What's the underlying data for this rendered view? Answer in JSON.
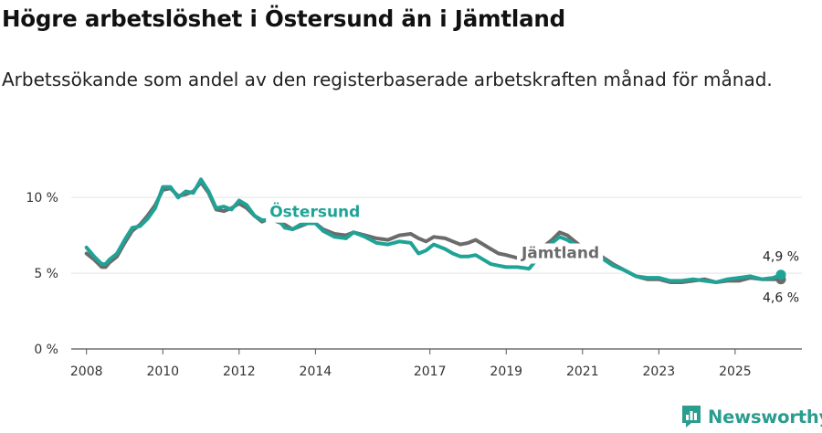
{
  "title": "Högre arbetslöshet i Östersund än i Jämtland",
  "subtitle": "Arbetssökande som andel av den registerbaserade arbetskraften månad för månad.",
  "brand": {
    "name": "Newsworthy",
    "icon": "newsworthy-logo-icon"
  },
  "colors": {
    "ostersund": "#1fa396",
    "jamtland": "#6b6b6b",
    "grid": "#e3e3e3",
    "axis": "#555555",
    "brand": "#2a9d8f"
  },
  "chart_data": {
    "type": "line",
    "title": "Högre arbetslöshet i Östersund än i Jämtland",
    "subtitle": "Arbetssökande som andel av den registerbaserade arbetskraften månad för månad.",
    "xlabel": "",
    "ylabel": "",
    "xlim": [
      2007.6,
      2026.75
    ],
    "ylim": [
      0,
      12
    ],
    "x_ticks": [
      2008,
      2010,
      2012,
      2014,
      2017,
      2019,
      2021,
      2023,
      2025
    ],
    "x_tick_labels": [
      "2008",
      "2010",
      "2012",
      "2014",
      "2017",
      "2019",
      "2021",
      "2023",
      "2025"
    ],
    "y_ticks": [
      0,
      5,
      10
    ],
    "y_tick_labels": [
      "0 %",
      "5 %",
      "10 %"
    ],
    "grid": true,
    "series": [
      {
        "name": "Jämtland",
        "label": "Jämtland",
        "end_label": "4,6 %",
        "color": "#6b6b6b",
        "x": [
          2008.0,
          2008.2,
          2008.4,
          2008.5,
          2008.6,
          2008.8,
          2009.0,
          2009.2,
          2009.4,
          2009.6,
          2009.8,
          2010.0,
          2010.2,
          2010.4,
          2010.6,
          2010.8,
          2011.0,
          2011.2,
          2011.4,
          2011.6,
          2011.8,
          2012.0,
          2012.2,
          2012.4,
          2012.6,
          2012.8,
          2013.0,
          2013.2,
          2013.4,
          2013.6,
          2013.8,
          2014.0,
          2014.2,
          2014.5,
          2014.8,
          2015.0,
          2015.3,
          2015.6,
          2015.9,
          2016.2,
          2016.5,
          2016.7,
          2016.9,
          2017.1,
          2017.4,
          2017.6,
          2017.8,
          2018.0,
          2018.2,
          2018.4,
          2018.6,
          2018.8,
          2019.0,
          2019.3,
          2019.6,
          2019.9,
          2020.2,
          2020.4,
          2020.6,
          2020.8,
          2021.0,
          2021.2,
          2021.5,
          2021.8,
          2022.1,
          2022.4,
          2022.7,
          2023.0,
          2023.3,
          2023.6,
          2023.9,
          2024.2,
          2024.5,
          2024.8,
          2025.1,
          2025.4,
          2025.7,
          2026.0,
          2026.2
        ],
        "values": [
          6.3,
          5.9,
          5.4,
          5.4,
          5.7,
          6.1,
          7.0,
          7.8,
          8.2,
          8.8,
          9.5,
          10.5,
          10.6,
          10.1,
          10.2,
          10.4,
          11.0,
          10.3,
          9.2,
          9.1,
          9.3,
          9.6,
          9.3,
          8.8,
          8.4,
          8.6,
          8.4,
          8.2,
          7.9,
          8.1,
          8.3,
          8.3,
          7.9,
          7.6,
          7.5,
          7.7,
          7.5,
          7.3,
          7.2,
          7.5,
          7.6,
          7.3,
          7.1,
          7.4,
          7.3,
          7.1,
          6.9,
          7.0,
          7.2,
          6.9,
          6.6,
          6.3,
          6.2,
          6.0,
          6.0,
          6.6,
          7.2,
          7.7,
          7.5,
          7.1,
          6.7,
          6.5,
          6.1,
          5.6,
          5.2,
          4.8,
          4.6,
          4.6,
          4.4,
          4.4,
          4.5,
          4.6,
          4.4,
          4.5,
          4.5,
          4.7,
          4.6,
          4.6,
          4.6
        ]
      },
      {
        "name": "Östersund",
        "label": "Östersund",
        "end_label": "4,9 %",
        "color": "#1fa396",
        "x": [
          2008.0,
          2008.2,
          2008.4,
          2008.5,
          2008.6,
          2008.8,
          2009.0,
          2009.2,
          2009.4,
          2009.6,
          2009.8,
          2010.0,
          2010.2,
          2010.4,
          2010.6,
          2010.8,
          2011.0,
          2011.2,
          2011.4,
          2011.6,
          2011.8,
          2012.0,
          2012.2,
          2012.4,
          2012.6,
          2012.8,
          2013.0,
          2013.2,
          2013.4,
          2013.6,
          2013.8,
          2014.0,
          2014.2,
          2014.5,
          2014.8,
          2015.0,
          2015.3,
          2015.6,
          2015.9,
          2016.2,
          2016.5,
          2016.7,
          2016.9,
          2017.1,
          2017.4,
          2017.6,
          2017.8,
          2018.0,
          2018.2,
          2018.4,
          2018.6,
          2018.8,
          2019.0,
          2019.3,
          2019.6,
          2019.9,
          2020.2,
          2020.4,
          2020.6,
          2020.8,
          2021.0,
          2021.2,
          2021.5,
          2021.8,
          2022.1,
          2022.4,
          2022.7,
          2023.0,
          2023.3,
          2023.6,
          2023.9,
          2024.2,
          2024.5,
          2024.8,
          2025.1,
          2025.4,
          2025.7,
          2026.0,
          2026.2
        ],
        "values": [
          6.7,
          6.1,
          5.6,
          5.6,
          5.9,
          6.3,
          7.2,
          8.0,
          8.1,
          8.6,
          9.3,
          10.7,
          10.7,
          10.0,
          10.4,
          10.3,
          11.2,
          10.4,
          9.3,
          9.4,
          9.2,
          9.8,
          9.5,
          8.8,
          8.5,
          8.5,
          8.6,
          8.0,
          7.9,
          8.2,
          8.3,
          8.3,
          7.8,
          7.4,
          7.3,
          7.7,
          7.4,
          7.0,
          6.9,
          7.1,
          7.0,
          6.3,
          6.5,
          6.9,
          6.6,
          6.3,
          6.1,
          6.1,
          6.2,
          5.9,
          5.6,
          5.5,
          5.4,
          5.4,
          5.3,
          6.2,
          7.0,
          7.4,
          7.2,
          6.9,
          6.7,
          6.5,
          6.0,
          5.5,
          5.2,
          4.8,
          4.7,
          4.7,
          4.5,
          4.5,
          4.6,
          4.5,
          4.4,
          4.6,
          4.7,
          4.8,
          4.6,
          4.7,
          4.9
        ]
      }
    ],
    "annotations": [
      {
        "text": "Östersund",
        "series": "Östersund"
      },
      {
        "text": "Jämtland",
        "series": "Jämtland"
      }
    ]
  }
}
